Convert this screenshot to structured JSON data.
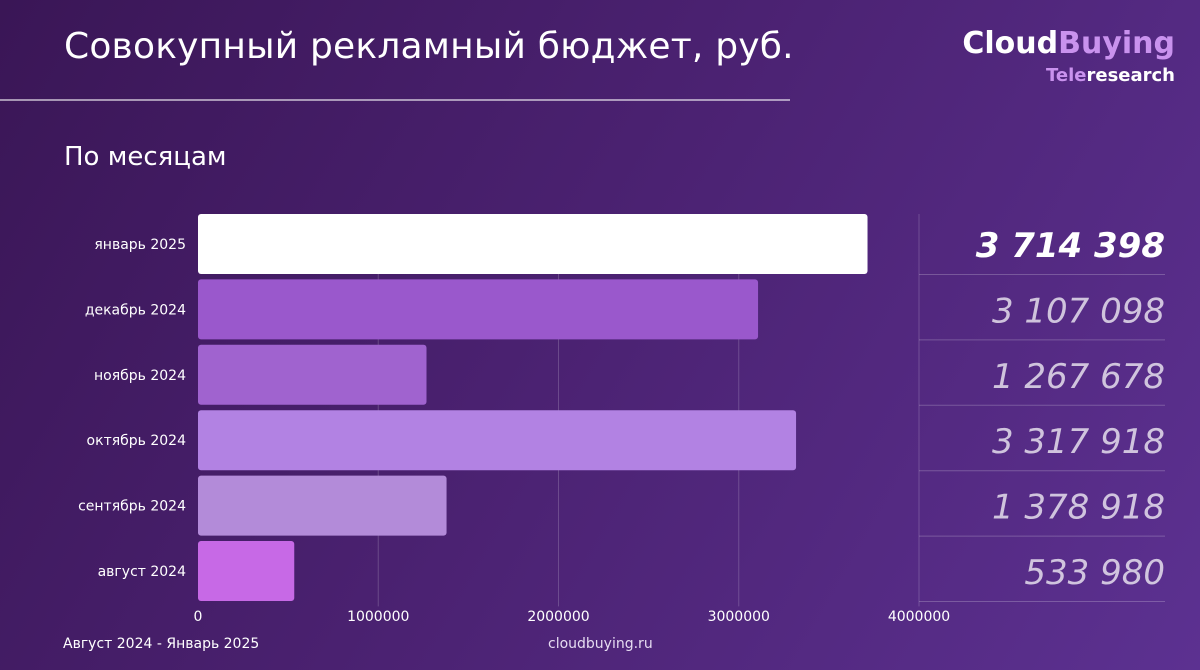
{
  "header": {
    "title": "Совокупный рекламный бюджет, руб.",
    "subtitle": "По месяцам"
  },
  "logo": {
    "main_part1": "Cloud",
    "main_part2": "Buying",
    "sub_part1": "Tele",
    "sub_part2": "research",
    "color_primary": "#ffffff",
    "color_accent": "#c992ee"
  },
  "footer": {
    "period": "Август 2024 - Январь 2025",
    "site": "cloudbuying.ru"
  },
  "chart_data": {
    "type": "bar",
    "orientation": "horizontal",
    "categories": [
      "январь 2025",
      "декабрь 2024",
      "ноябрь 2024",
      "октябрь 2024",
      "сентябрь 2024",
      "август 2024"
    ],
    "values": [
      3714398,
      3107098,
      1267678,
      3317918,
      1378918,
      533980
    ],
    "value_labels": [
      "3 714 398",
      "3 107 098",
      "1 267 678",
      "3 317 918",
      "1 378 918",
      "533 980"
    ],
    "bar_colors": [
      "#ffffff",
      "#9a58cc",
      "#a063cf",
      "#b282e3",
      "#b38bd9",
      "#c769e6"
    ],
    "xlim": [
      0,
      4000000
    ],
    "x_ticks": [
      0,
      1000000,
      2000000,
      3000000,
      4000000
    ],
    "x_tick_labels": [
      "0",
      "1000000",
      "2000000",
      "3000000",
      "4000000"
    ],
    "grid": true,
    "highlight_first": true
  }
}
